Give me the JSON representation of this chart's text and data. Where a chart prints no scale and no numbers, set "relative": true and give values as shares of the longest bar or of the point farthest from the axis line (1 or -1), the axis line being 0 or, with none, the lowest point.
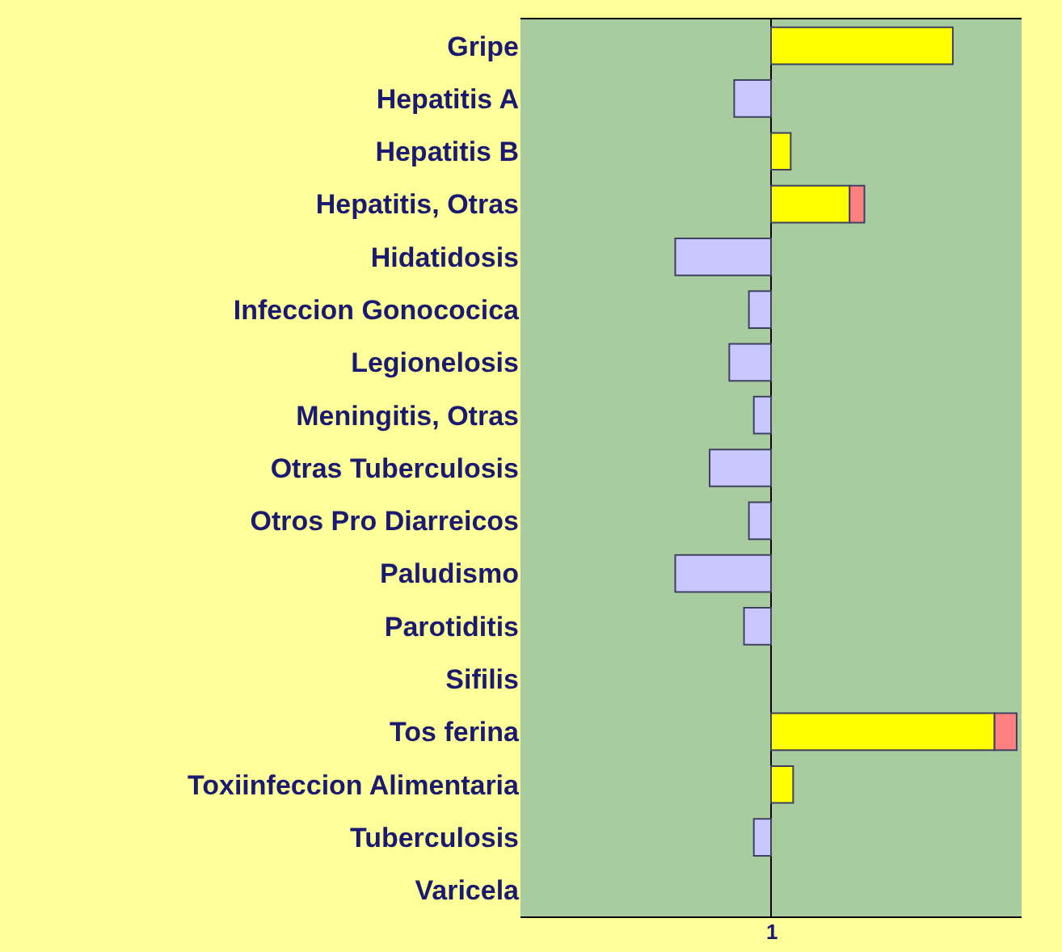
{
  "chart_data": {
    "type": "bar",
    "orientation": "horizontal",
    "stacked": true,
    "relative": true,
    "categories": [
      "Gripe",
      "Hepatitis A",
      "Hepatitis B",
      "Hepatitis, Otras",
      "Hidatidosis",
      "Infeccion Gonococica",
      "Legionelosis",
      "Meningitis, Otras",
      "Otras Tuberculosis",
      "Otros Pro Diarreicos",
      "Paludismo",
      "Parotiditis",
      "Sifilis",
      "Tos ferina",
      "Toxiinfeccion Alimentaria",
      "Tuberculosis",
      "Varicela"
    ],
    "series": [
      {
        "color": "#ffff00",
        "values": [
          0.74,
          null,
          0.08,
          0.32,
          null,
          null,
          null,
          null,
          null,
          null,
          null,
          null,
          null,
          0.91,
          0.09,
          null,
          null
        ]
      },
      {
        "color": "#ff8080",
        "values": [
          null,
          null,
          null,
          0.06,
          null,
          null,
          null,
          null,
          null,
          null,
          null,
          null,
          null,
          0.09,
          null,
          null,
          null
        ]
      },
      {
        "color": "#c8c8ff",
        "values": [
          null,
          -0.15,
          null,
          null,
          -0.39,
          -0.09,
          -0.17,
          -0.07,
          -0.25,
          -0.09,
          -0.39,
          -0.11,
          null,
          null,
          null,
          -0.07,
          null
        ]
      }
    ],
    "annotations": [
      "1"
    ]
  }
}
